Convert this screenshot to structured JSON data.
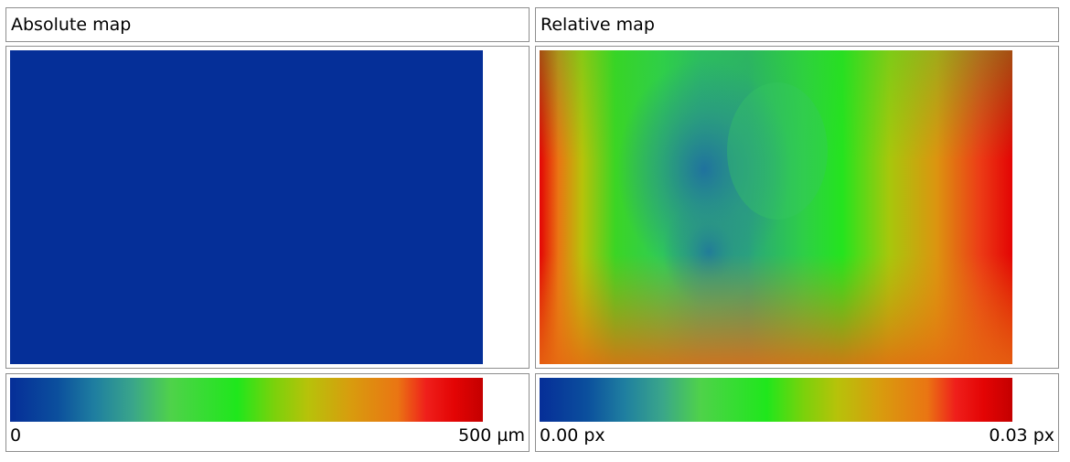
{
  "panels": {
    "absolute": {
      "title": "Absolute map",
      "legend_min": "0",
      "legend_max": "500 µm",
      "map_color": "#052f98"
    },
    "relative": {
      "title": "Relative map",
      "legend_min": "0.00 px",
      "legend_max": "0.03 px"
    }
  },
  "colormap": [
    "#062e98",
    "#1f7fa0",
    "#1fe71c",
    "#b7c20a",
    "#ea7513",
    "#e30404",
    "#c40000"
  ]
}
